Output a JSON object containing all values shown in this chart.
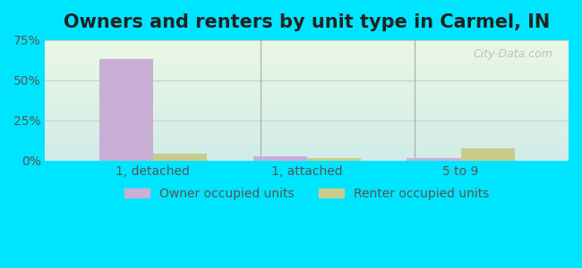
{
  "title": "Owners and renters by unit type in Carmel, IN",
  "categories": [
    "1, detached",
    "1, attached",
    "5 to 9"
  ],
  "owner_values": [
    63.0,
    2.5,
    1.5
  ],
  "renter_values": [
    4.5,
    1.5,
    7.5
  ],
  "owner_color": "#c9aed6",
  "renter_color": "#c8cc8a",
  "ylim": [
    0,
    75
  ],
  "yticks": [
    0,
    25,
    50,
    75
  ],
  "ytick_labels": [
    "0%",
    "25%",
    "50%",
    "75%"
  ],
  "outer_color": "#00e5ff",
  "bar_width": 0.35,
  "legend_labels": [
    "Owner occupied units",
    "Renter occupied units"
  ],
  "watermark": "City-Data.com",
  "title_fontsize": 15,
  "axis_fontsize": 10,
  "legend_fontsize": 10
}
